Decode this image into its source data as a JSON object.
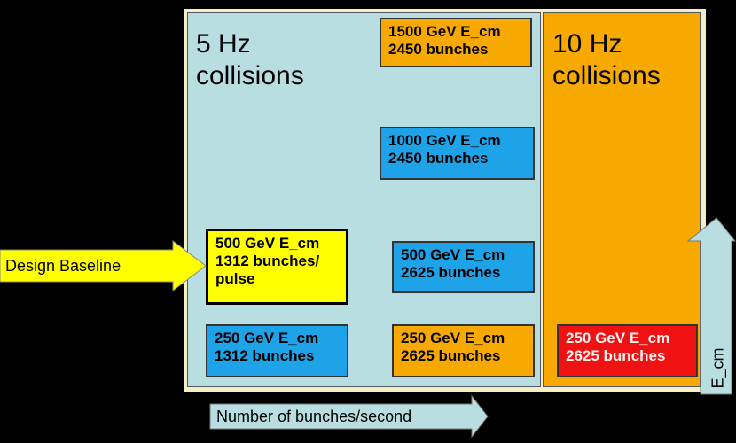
{
  "regions": [
    {
      "lines": [
        "5 Hz",
        "collisions"
      ]
    },
    {
      "lines": [
        "10 Hz",
        "collisions"
      ]
    }
  ],
  "nodes": [
    {
      "lines": [
        "1500 GeV E_cm",
        "2450 bunches"
      ]
    },
    {
      "lines": [
        "1000 GeV E_cm",
        "2450 bunches"
      ]
    },
    {
      "lines": [
        "500 GeV E_cm",
        "1312 bunches/",
        "pulse"
      ]
    },
    {
      "lines": [
        "500 GeV E_cm",
        "2625 bunches"
      ]
    },
    {
      "lines": [
        "250 GeV E_cm",
        "1312 bunches"
      ]
    },
    {
      "lines": [
        "250 GeV E_cm",
        "2625 bunches"
      ]
    },
    {
      "lines": [
        "250 GeV E_cm",
        "2625 bunches"
      ]
    }
  ],
  "arrows": {
    "left": "Design Baseline",
    "bottom": "Number of bunches/second",
    "up": "E_cm"
  }
}
